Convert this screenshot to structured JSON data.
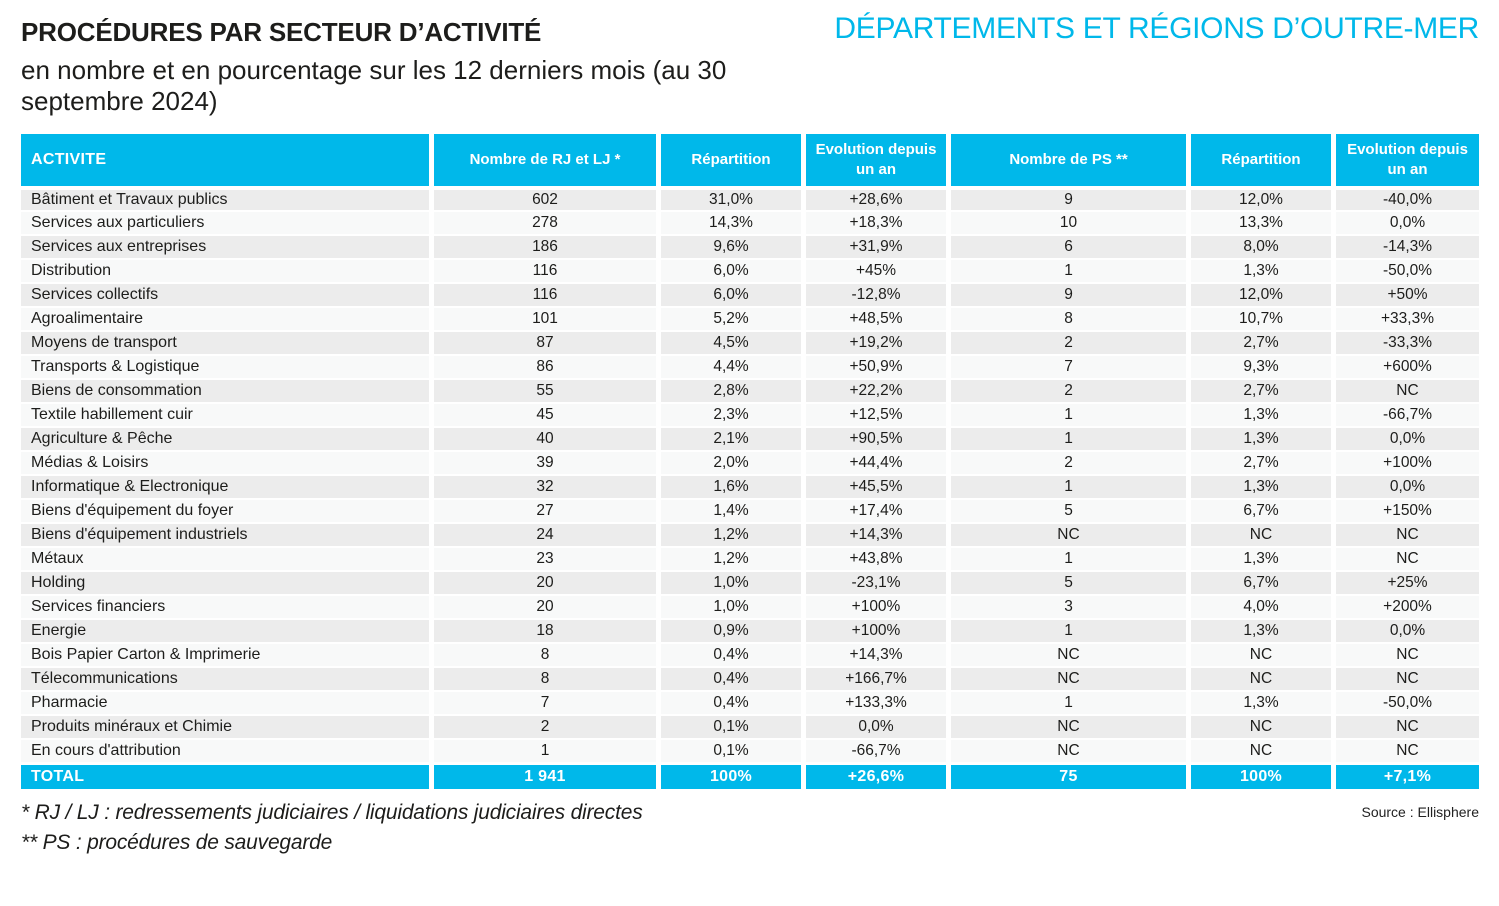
{
  "header": {
    "title": "PROCÉDURES PAR SECTEUR D’ACTIVITÉ",
    "subtitle": "en nombre et en pourcentage sur les 12 derniers mois (au 30 septembre 2024)",
    "region_title": "DÉPARTEMENTS ET RÉGIONS D’OUTRE-MER"
  },
  "colors": {
    "accent": "#00b8ea",
    "row_odd": "#ececec",
    "row_even": "#f8f9f9"
  },
  "table": {
    "columns": [
      "ACTIVITE",
      "Nombre de RJ et LJ *",
      "Répartition",
      "Evolution depuis un an",
      "Nombre de PS **",
      "Répartition",
      "Evolution depuis un an"
    ],
    "rows": [
      [
        "Bâtiment et Travaux publics",
        "602",
        "31,0%",
        "+28,6%",
        "9",
        "12,0%",
        "-40,0%"
      ],
      [
        "Services aux particuliers",
        "278",
        "14,3%",
        "+18,3%",
        "10",
        "13,3%",
        "0,0%"
      ],
      [
        "Services aux entreprises",
        "186",
        "9,6%",
        "+31,9%",
        "6",
        "8,0%",
        "-14,3%"
      ],
      [
        "Distribution",
        "116",
        "6,0%",
        "+45%",
        "1",
        "1,3%",
        "-50,0%"
      ],
      [
        "Services collectifs",
        "116",
        "6,0%",
        "-12,8%",
        "9",
        "12,0%",
        "+50%"
      ],
      [
        "Agroalimentaire",
        "101",
        "5,2%",
        "+48,5%",
        "8",
        "10,7%",
        "+33,3%"
      ],
      [
        "Moyens de transport",
        "87",
        "4,5%",
        "+19,2%",
        "2",
        "2,7%",
        "-33,3%"
      ],
      [
        "Transports & Logistique",
        "86",
        "4,4%",
        "+50,9%",
        "7",
        "9,3%",
        "+600%"
      ],
      [
        "Biens de consommation",
        "55",
        "2,8%",
        "+22,2%",
        "2",
        "2,7%",
        "NC"
      ],
      [
        "Textile habillement cuir",
        "45",
        "2,3%",
        "+12,5%",
        "1",
        "1,3%",
        "-66,7%"
      ],
      [
        "Agriculture & Pêche",
        "40",
        "2,1%",
        "+90,5%",
        "1",
        "1,3%",
        "0,0%"
      ],
      [
        "Médias & Loisirs",
        "39",
        "2,0%",
        "+44,4%",
        "2",
        "2,7%",
        "+100%"
      ],
      [
        "Informatique & Electronique",
        "32",
        "1,6%",
        "+45,5%",
        "1",
        "1,3%",
        "0,0%"
      ],
      [
        "Biens d'équipement du foyer",
        "27",
        "1,4%",
        "+17,4%",
        "5",
        "6,7%",
        "+150%"
      ],
      [
        "Biens d'équipement industriels",
        "24",
        "1,2%",
        "+14,3%",
        "NC",
        "NC",
        "NC"
      ],
      [
        "Métaux",
        "23",
        "1,2%",
        "+43,8%",
        "1",
        "1,3%",
        "NC"
      ],
      [
        "Holding",
        "20",
        "1,0%",
        "-23,1%",
        "5",
        "6,7%",
        "+25%"
      ],
      [
        "Services financiers",
        "20",
        "1,0%",
        "+100%",
        "3",
        "4,0%",
        "+200%"
      ],
      [
        "Energie",
        "18",
        "0,9%",
        "+100%",
        "1",
        "1,3%",
        "0,0%"
      ],
      [
        "Bois Papier Carton & Imprimerie",
        "8",
        "0,4%",
        "+14,3%",
        "NC",
        "NC",
        "NC"
      ],
      [
        "Télecommunications",
        "8",
        "0,4%",
        "+166,7%",
        "NC",
        "NC",
        "NC"
      ],
      [
        "Pharmacie",
        "7",
        "0,4%",
        "+133,3%",
        "1",
        "1,3%",
        "-50,0%"
      ],
      [
        "Produits minéraux et Chimie",
        "2",
        "0,1%",
        "0,0%",
        "NC",
        "NC",
        "NC"
      ],
      [
        "En cours d'attribution",
        "1",
        "0,1%",
        "-66,7%",
        "NC",
        "NC",
        "NC"
      ]
    ],
    "total": [
      "TOTAL",
      "1 941",
      "100%",
      "+26,6%",
      "75",
      "100%",
      "+7,1%"
    ]
  },
  "footnotes": [
    "* RJ / LJ : redressements judiciaires / liquidations judiciaires directes",
    "** PS : procédures de sauvegarde"
  ],
  "source": "Source : Ellisphere"
}
